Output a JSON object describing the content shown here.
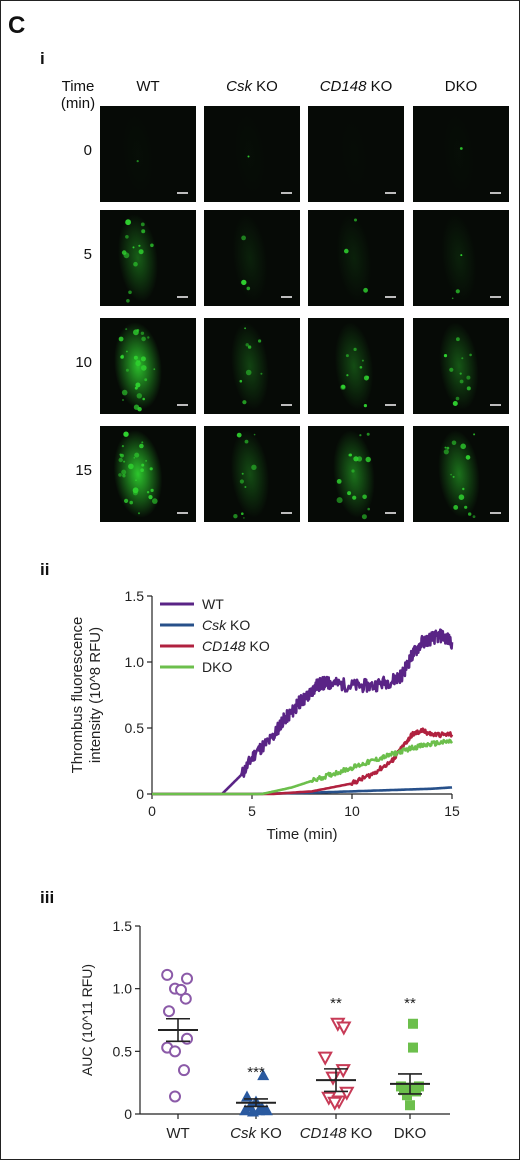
{
  "panel_letter": "C",
  "panels": {
    "i": {
      "label": "i",
      "time_header": [
        "Time",
        "(min)"
      ],
      "columns": [
        {
          "pre": "",
          "ital": "",
          "post": "WT"
        },
        {
          "pre": "",
          "ital": "Csk",
          "post": " KO"
        },
        {
          "pre": "",
          "ital": "CD148",
          "post": " KO"
        },
        {
          "pre": "",
          "ital": "",
          "post": "DKO"
        }
      ],
      "times": [
        "0",
        "5",
        "10",
        "15"
      ],
      "fluorescence_level": [
        [
          0.02,
          0.02,
          0.01,
          0.02
        ],
        [
          0.45,
          0.12,
          0.12,
          0.12
        ],
        [
          0.95,
          0.3,
          0.35,
          0.4
        ],
        [
          1.0,
          0.35,
          0.55,
          0.55
        ]
      ],
      "colors": {
        "fluor": "#2fd12f",
        "background": "#060a06"
      }
    },
    "ii": {
      "label": "ii"
    },
    "iii": {
      "label": "iii"
    }
  },
  "chart_data": [
    {
      "type": "line",
      "panel": "ii",
      "ylabel": [
        "Thrombus fluorescence",
        "intensity (10^8 RFU)"
      ],
      "xlabel": "Time (min)",
      "xlim": [
        0,
        15
      ],
      "ylim": [
        0,
        1.5
      ],
      "xticks": [
        "0",
        "5",
        "10",
        "15"
      ],
      "yticks": [
        "0",
        "0.5",
        "1.0",
        "1.5"
      ],
      "legend_position": "top-left",
      "series": [
        {
          "name": "WT",
          "name_ital": "",
          "name_post": "WT",
          "color": "#5a2486",
          "x": [
            0,
            3.5,
            4.5,
            5.2,
            6.0,
            6.5,
            7.0,
            7.4,
            7.8,
            8.2,
            8.6,
            9.0,
            10.0,
            11.0,
            12.0,
            12.5,
            13.0,
            13.5,
            14.0,
            14.5,
            15.0
          ],
          "y": [
            0,
            0,
            0.15,
            0.32,
            0.42,
            0.55,
            0.62,
            0.7,
            0.74,
            0.82,
            0.84,
            0.84,
            0.82,
            0.82,
            0.86,
            0.9,
            1.05,
            1.15,
            1.18,
            1.2,
            1.15
          ]
        },
        {
          "name": "Csk KO",
          "name_ital": "Csk",
          "name_post": " KO",
          "color": "#27508a",
          "x": [
            0,
            5,
            8,
            10,
            12,
            14,
            15
          ],
          "y": [
            0,
            0,
            0.01,
            0.02,
            0.03,
            0.04,
            0.05
          ]
        },
        {
          "name": "CD148 KO",
          "name_ital": "CD148",
          "name_post": " KO",
          "color": "#b0213f",
          "x": [
            0,
            6,
            8,
            10,
            11,
            12,
            12.5,
            13,
            13.5,
            14,
            15
          ],
          "y": [
            0,
            0,
            0.02,
            0.08,
            0.15,
            0.25,
            0.35,
            0.45,
            0.48,
            0.45,
            0.45
          ]
        },
        {
          "name": "DKO",
          "name_ital": "",
          "name_post": "DKO",
          "color": "#6cbf4c",
          "x": [
            0,
            5.5,
            7,
            8,
            9,
            10,
            11,
            12,
            13,
            14,
            15
          ],
          "y": [
            0,
            0,
            0.05,
            0.1,
            0.15,
            0.2,
            0.25,
            0.3,
            0.35,
            0.38,
            0.4
          ]
        }
      ]
    },
    {
      "type": "scatter",
      "panel": "iii",
      "ylabel": "AUC (10^11 RFU)",
      "ylim": [
        0,
        1.5
      ],
      "yticks": [
        "0",
        "0.5",
        "1.0",
        "1.5"
      ],
      "categories": [
        {
          "pre": "",
          "ital": "",
          "post": "WT"
        },
        {
          "pre": "",
          "ital": "Csk",
          "post": " KO"
        },
        {
          "pre": "",
          "ital": "CD148",
          "post": " KO"
        },
        {
          "pre": "",
          "ital": "",
          "post": "DKO"
        }
      ],
      "groups": [
        {
          "name": "WT",
          "marker": "circle-open",
          "color": "#8b5aa8",
          "mean": 0.67,
          "sem": 0.09,
          "significance": "",
          "points": [
            [
              -0.18,
              1.11
            ],
            [
              0.15,
              1.08
            ],
            [
              -0.05,
              1.0
            ],
            [
              0.05,
              0.99
            ],
            [
              0.13,
              0.92
            ],
            [
              -0.15,
              0.82
            ],
            [
              0.15,
              0.6
            ],
            [
              -0.18,
              0.53
            ],
            [
              -0.05,
              0.5
            ],
            [
              0.1,
              0.35
            ],
            [
              -0.05,
              0.14
            ]
          ]
        },
        {
          "name": "Csk KO",
          "marker": "triangle-up",
          "color": "#2a5aa0",
          "mean": 0.09,
          "sem": 0.03,
          "significance": "***",
          "points": [
            [
              0.12,
              0.31
            ],
            [
              -0.15,
              0.14
            ],
            [
              0.0,
              0.1
            ],
            [
              -0.1,
              0.06
            ],
            [
              0.1,
              0.05
            ],
            [
              -0.18,
              0.03
            ],
            [
              0.05,
              0.03
            ],
            [
              0.18,
              0.03
            ],
            [
              -0.05,
              0.02
            ]
          ]
        },
        {
          "name": "CD148 KO",
          "marker": "triangle-down-open",
          "color": "#c73a56",
          "mean": 0.27,
          "sem": 0.09,
          "significance": "**",
          "points": [
            [
              0.03,
              0.72
            ],
            [
              0.13,
              0.69
            ],
            [
              -0.18,
              0.45
            ],
            [
              0.12,
              0.35
            ],
            [
              -0.05,
              0.29
            ],
            [
              0.18,
              0.17
            ],
            [
              -0.12,
              0.13
            ],
            [
              0.05,
              0.1
            ],
            [
              -0.02,
              0.09
            ]
          ]
        },
        {
          "name": "DKO",
          "marker": "square",
          "color": "#6cbf4c",
          "mean": 0.24,
          "sem": 0.08,
          "significance": "**",
          "points": [
            [
              0.05,
              0.72
            ],
            [
              0.05,
              0.53
            ],
            [
              -0.15,
              0.22
            ],
            [
              0.15,
              0.22
            ],
            [
              0.0,
              0.21
            ],
            [
              -0.1,
              0.19
            ],
            [
              0.1,
              0.18
            ],
            [
              -0.05,
              0.15
            ],
            [
              0.0,
              0.07
            ]
          ]
        }
      ]
    }
  ]
}
